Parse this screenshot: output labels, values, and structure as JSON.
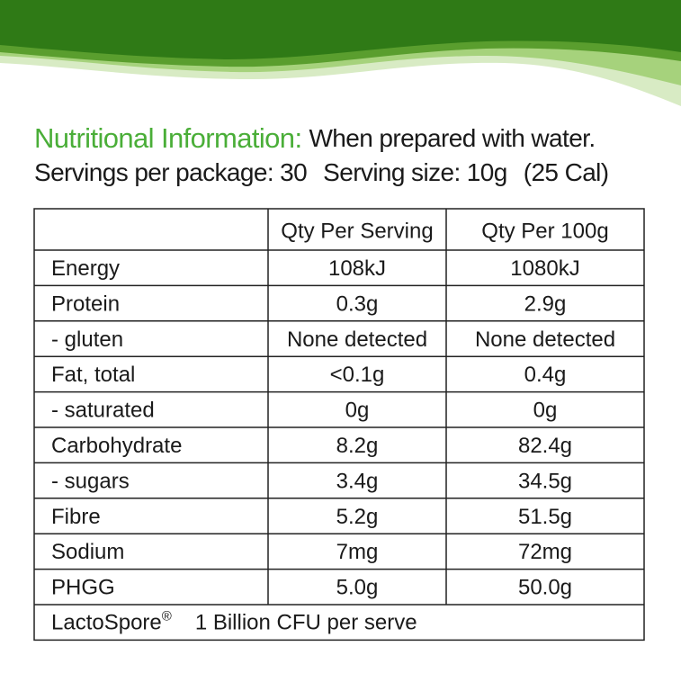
{
  "header": {
    "title": "Nutritional Information:",
    "subtitle": "When prepared with water.",
    "servings": "Servings per package: 30",
    "serving_size": "Serving size: 10g",
    "calories": "(25 Cal)"
  },
  "table": {
    "columns": [
      "Qty Per Serving",
      "Qty Per 100g"
    ],
    "rows": [
      [
        "Energy",
        "108kJ",
        "1080kJ"
      ],
      [
        "Protein",
        "0.3g",
        "2.9g"
      ],
      [
        "- gluten",
        "None detected",
        "None detected"
      ],
      [
        "Fat, total",
        "<0.1g",
        "0.4g"
      ],
      [
        "- saturated",
        "0g",
        "0g"
      ],
      [
        "Carbohydrate",
        "8.2g",
        "82.4g"
      ],
      [
        "- sugars",
        "3.4g",
        "34.5g"
      ],
      [
        "Fibre",
        "5.2g",
        "51.5g"
      ],
      [
        "Sodium",
        "7mg",
        "72mg"
      ],
      [
        "PHGG",
        "5.0g",
        "50.0g"
      ]
    ],
    "footer": {
      "name": "LactoSpore",
      "mark": "®",
      "text": "1 Billion CFU per serve"
    }
  }
}
